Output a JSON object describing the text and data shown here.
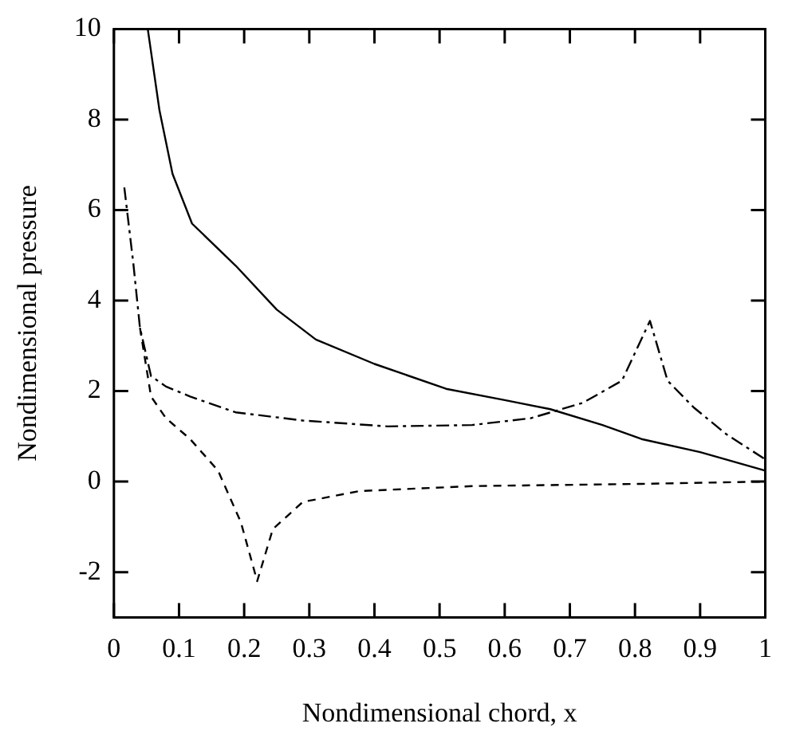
{
  "chart_data": {
    "type": "line",
    "xlabel": "Nondimensional chord, x",
    "ylabel": "Nondimensional pressure",
    "xlim": [
      0,
      1
    ],
    "ylim": [
      -3,
      10
    ],
    "xticks": [
      0,
      0.1,
      0.2,
      0.3,
      0.4,
      0.5,
      0.6,
      0.7,
      0.8,
      0.9,
      1
    ],
    "yticks": [
      -2,
      0,
      2,
      4,
      6,
      8,
      10
    ],
    "grid": false,
    "legend": false,
    "marker": "none",
    "series": [
      {
        "color": "#000000",
        "line_style": "solid",
        "x": [
          0.052,
          0.07,
          0.09,
          0.12,
          0.187,
          0.25,
          0.31,
          0.4,
          0.51,
          0.6,
          0.67,
          0.75,
          0.81,
          0.9,
          1
        ],
        "values": [
          10,
          8.2,
          6.8,
          5.7,
          4.77,
          3.8,
          3.14,
          2.6,
          2.05,
          1.8,
          1.6,
          1.25,
          0.94,
          0.65,
          0.24
        ]
      },
      {
        "color": "#000000",
        "line_style": "dashdot",
        "x": [
          0.016,
          0.03,
          0.04,
          0.057,
          0.08,
          0.117,
          0.187,
          0.29,
          0.42,
          0.55,
          0.64,
          0.72,
          0.78,
          0.823,
          0.85,
          0.89,
          0.94,
          1
        ],
        "values": [
          6.5,
          4.8,
          3.4,
          2.33,
          2.1,
          1.88,
          1.53,
          1.35,
          1.22,
          1.25,
          1.4,
          1.74,
          2.23,
          3.55,
          2.23,
          1.64,
          1.05,
          0.49
        ]
      },
      {
        "color": "#000000",
        "line_style": "dashed",
        "x": [
          0.04,
          0.057,
          0.08,
          0.117,
          0.16,
          0.195,
          0.22,
          0.244,
          0.29,
          0.377,
          0.55,
          0.81,
          1
        ],
        "values": [
          3.4,
          1.88,
          1.4,
          0.94,
          0.24,
          -0.9,
          -2.2,
          -1.05,
          -0.45,
          -0.21,
          -0.1,
          -0.05,
          0
        ]
      }
    ]
  }
}
